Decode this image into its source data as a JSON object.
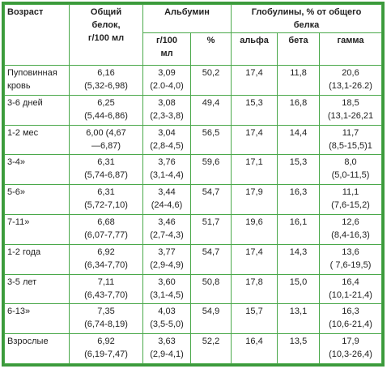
{
  "table": {
    "header_top": [
      [
        "Возраст"
      ],
      [
        "Общий",
        "белок,",
        "г/100 мл"
      ],
      [
        "Альбумин"
      ],
      [
        "Глобулины, % от общего",
        "белка"
      ]
    ],
    "header_sub": [
      [
        "г/100",
        "мл"
      ],
      [
        "%"
      ],
      [
        "альфа"
      ],
      [
        "бета"
      ],
      [
        "гамма"
      ]
    ],
    "rows": [
      [
        [
          "Пуповинная",
          "кровь"
        ],
        [
          "6,16",
          "(5,32-6,98)"
        ],
        [
          "3,09",
          "(2.0-4,0)"
        ],
        [
          "50,2"
        ],
        [
          "17,4"
        ],
        [
          "11,8"
        ],
        [
          "20,6",
          "(13,1-26.2)"
        ]
      ],
      [
        [
          "3-6 дней"
        ],
        [
          "6,25",
          "(5,44-6,86)"
        ],
        [
          "3,08",
          "(2,3-3,8)"
        ],
        [
          "49,4"
        ],
        [
          "15,3"
        ],
        [
          "16,8"
        ],
        [
          "18,5",
          "(13,1-26,21"
        ]
      ],
      [
        [
          "1-2 мес"
        ],
        [
          "6,00 (4,67",
          "—6,87)"
        ],
        [
          "3,04",
          "(2,8-4,5)"
        ],
        [
          "56,5"
        ],
        [
          "17,4"
        ],
        [
          "14,4"
        ],
        [
          "11,7",
          "(8,5-15,5)1"
        ]
      ],
      [
        [
          "3-4»"
        ],
        [
          "6,31",
          "(5,74-6,87)"
        ],
        [
          "3,76",
          "(3,1-4,4)"
        ],
        [
          "59,6"
        ],
        [
          "17,1"
        ],
        [
          "15,3"
        ],
        [
          "8,0",
          "(5,0-11,5)"
        ]
      ],
      [
        [
          "5-6»"
        ],
        [
          "6,31",
          "(5,72-7,10)"
        ],
        [
          "3,44",
          "(24-4,6)"
        ],
        [
          "54,7"
        ],
        [
          "17,9"
        ],
        [
          "16,3"
        ],
        [
          "11,1",
          "(7,6-15,2)"
        ]
      ],
      [
        [
          "7-11»"
        ],
        [
          "6,68",
          "(6,07-7,77)"
        ],
        [
          "3,46",
          "(2,7-4,3)"
        ],
        [
          "51,7"
        ],
        [
          "19,6"
        ],
        [
          "16,1"
        ],
        [
          "12,6",
          "(8,4-16,3)"
        ]
      ],
      [
        [
          "1-2 года"
        ],
        [
          "6,92",
          "(6,34-7,70)"
        ],
        [
          "3,77",
          "(2,9-4,9)"
        ],
        [
          "54,7"
        ],
        [
          "17,4"
        ],
        [
          "14,3"
        ],
        [
          "13,6",
          "( 7,6-19,5)"
        ]
      ],
      [
        [
          "3-5 лет"
        ],
        [
          "7,11",
          "(6,43-7,70)"
        ],
        [
          "3,60",
          "(3,1-4,5)"
        ],
        [
          "50,8"
        ],
        [
          "17,8"
        ],
        [
          "15,0"
        ],
        [
          "16,4",
          "(10,1-21,4)"
        ]
      ],
      [
        [
          "6-13»"
        ],
        [
          "7,35",
          "(6,74-8,19)"
        ],
        [
          "4,03",
          "(3,5-5,0)"
        ],
        [
          "54,9"
        ],
        [
          "15,7"
        ],
        [
          "13,1"
        ],
        [
          "16,3",
          "(10,6-21,4)"
        ]
      ],
      [
        [
          "Взрослые"
        ],
        [
          "6,92",
          "(6,19-7,47)"
        ],
        [
          "3,63",
          "(2,9-4,1)"
        ],
        [
          "52,2"
        ],
        [
          "16,4"
        ],
        [
          "13,5"
        ],
        [
          "17,9",
          "(10,3-26,4)"
        ]
      ]
    ]
  }
}
